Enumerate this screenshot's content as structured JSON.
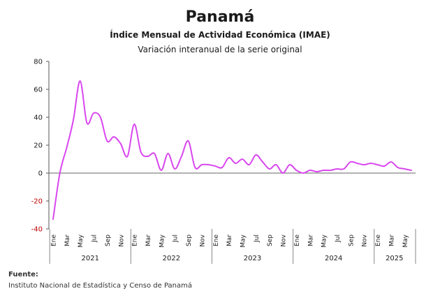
{
  "header": {
    "title": "Panamá",
    "subtitle": "Índice Mensual de Actividad Económica (IMAE)",
    "subtitle2": "Variación interanual de la serie original"
  },
  "source": {
    "label": "Fuente:",
    "text": "Instituto Nacional de Estadística y Censo de Panamá"
  },
  "colors": {
    "line": "#d946ef",
    "axis": "#555555",
    "negative_tick": "#c00000"
  },
  "chart_data": {
    "type": "line",
    "title": "Panamá",
    "subtitle": "Índice Mensual de Actividad Económica (IMAE)",
    "ylim": [
      -40,
      80
    ],
    "yticks": [
      -40,
      -20,
      0,
      20,
      40,
      60,
      80
    ],
    "grid": false,
    "legend": "none",
    "x": [
      "2021-01",
      "2021-02",
      "2021-03",
      "2021-04",
      "2021-05",
      "2021-06",
      "2021-07",
      "2021-08",
      "2021-09",
      "2021-10",
      "2021-11",
      "2021-12",
      "2022-01",
      "2022-02",
      "2022-03",
      "2022-04",
      "2022-05",
      "2022-06",
      "2022-07",
      "2022-08",
      "2022-09",
      "2022-10",
      "2022-11",
      "2022-12",
      "2023-01",
      "2023-02",
      "2023-03",
      "2023-04",
      "2023-05",
      "2023-06",
      "2023-07",
      "2023-08",
      "2023-09",
      "2023-10",
      "2023-11",
      "2023-12",
      "2024-01",
      "2024-02",
      "2024-03",
      "2024-04",
      "2024-05",
      "2024-06",
      "2024-07",
      "2024-08",
      "2024-09",
      "2024-10",
      "2024-11",
      "2024-12",
      "2025-01",
      "2025-02",
      "2025-03",
      "2025-04",
      "2025-05",
      "2025-06"
    ],
    "month_labels": [
      "Ene",
      "Mar",
      "May",
      "Jul",
      "Sep",
      "Nov"
    ],
    "month_label_every": 2,
    "years": [
      "2021",
      "2022",
      "2023",
      "2024",
      "2025"
    ],
    "series": [
      {
        "values": [
          -33,
          0,
          18,
          38,
          66,
          36,
          43,
          40,
          23,
          26,
          21,
          12,
          35,
          15,
          12,
          14,
          2,
          14,
          3,
          12,
          23,
          4,
          6,
          6,
          5,
          4,
          11,
          7,
          10,
          6,
          13,
          8,
          3,
          6,
          0,
          6,
          2,
          0,
          2,
          1,
          2,
          2,
          3,
          3,
          8,
          7,
          6,
          7,
          6,
          5,
          8,
          4,
          3,
          2
        ]
      }
    ]
  }
}
